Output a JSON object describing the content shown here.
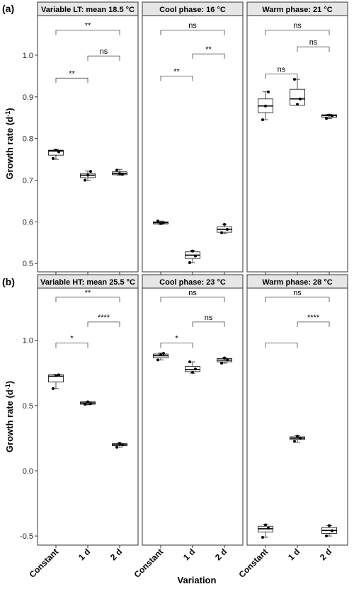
{
  "figure": {
    "xlabel": "Variation",
    "ylabel_prefix": "Growth rate (d",
    "ylabel_sup": "-1",
    "ylabel_suffix": ")"
  },
  "chart_data": [
    {
      "type": "boxplot",
      "tag": "(a)",
      "categories": [
        "Constant",
        "1 d",
        "2 d"
      ],
      "yticks": [
        0.5,
        0.6,
        0.7,
        0.8,
        0.9,
        1.0
      ],
      "ytick_labels": [
        "0.5",
        "0.6",
        "0.7",
        "0.8",
        "0.9",
        "1.0"
      ],
      "ylim": [
        0.48,
        1.095
      ],
      "panels": [
        {
          "title": "Variable LT: mean 18.5 °C",
          "boxes": [
            {
              "q1": 0.76,
              "median": 0.77,
              "q3": 0.772,
              "wmin": 0.75,
              "wmax": 0.774,
              "points": [
                0.752,
                0.772,
                0.768
              ]
            },
            {
              "q1": 0.706,
              "median": 0.712,
              "q3": 0.716,
              "wmin": 0.7,
              "wmax": 0.722,
              "points": [
                0.7,
                0.712,
                0.721
              ]
            },
            {
              "q1": 0.713,
              "median": 0.716,
              "q3": 0.72,
              "wmin": 0.712,
              "wmax": 0.726,
              "points": [
                0.724,
                0.716,
                0.714
              ]
            }
          ],
          "comparisons": [
            {
              "from": 0,
              "to": 2,
              "y": 1.06,
              "label": "**"
            },
            {
              "from": 1,
              "to": 2,
              "y": 0.998,
              "label": "ns"
            },
            {
              "from": 0,
              "to": 1,
              "y": 0.945,
              "label": "**"
            }
          ]
        },
        {
          "title": "Cool phase: 16 °C",
          "boxes": [
            {
              "q1": 0.595,
              "median": 0.598,
              "q3": 0.6,
              "wmin": 0.594,
              "wmax": 0.602,
              "points": [
                0.602,
                0.596,
                0.598
              ]
            },
            {
              "q1": 0.512,
              "median": 0.52,
              "q3": 0.528,
              "wmin": 0.502,
              "wmax": 0.532,
              "points": [
                0.502,
                0.53,
                0.518
              ]
            },
            {
              "q1": 0.575,
              "median": 0.582,
              "q3": 0.588,
              "wmin": 0.572,
              "wmax": 0.594,
              "points": [
                0.574,
                0.594,
                0.582
              ]
            }
          ],
          "comparisons": [
            {
              "from": 0,
              "to": 2,
              "y": 1.06,
              "label": "ns"
            },
            {
              "from": 1,
              "to": 2,
              "y": 1.003,
              "label": "**"
            },
            {
              "from": 0,
              "to": 1,
              "y": 0.95,
              "label": "**"
            }
          ]
        },
        {
          "title": "Warm phase: 21 °C",
          "boxes": [
            {
              "q1": 0.862,
              "median": 0.878,
              "q3": 0.895,
              "wmin": 0.845,
              "wmax": 0.912,
              "points": [
                0.845,
                0.878,
                0.912
              ]
            },
            {
              "q1": 0.88,
              "median": 0.895,
              "q3": 0.918,
              "wmin": 0.88,
              "wmax": 0.942,
              "points": [
                0.942,
                0.882,
                0.895
              ]
            },
            {
              "q1": 0.851,
              "median": 0.855,
              "q3": 0.857,
              "wmin": 0.848,
              "wmax": 0.858,
              "points": [
                0.848,
                0.856,
                0.854
              ]
            }
          ],
          "comparisons": [
            {
              "from": 0,
              "to": 2,
              "y": 1.06,
              "label": "ns"
            },
            {
              "from": 1,
              "to": 2,
              "y": 1.02,
              "label": "ns"
            },
            {
              "from": 0,
              "to": 1,
              "y": 0.955,
              "label": "ns"
            }
          ]
        }
      ]
    },
    {
      "type": "boxplot",
      "tag": "(b)",
      "categories": [
        "Constant",
        "1 d",
        "2 d"
      ],
      "yticks": [
        -0.5,
        0.0,
        0.5,
        1.0
      ],
      "ytick_labels": [
        "-0.5",
        "0.0",
        "0.5",
        "1.0"
      ],
      "ylim": [
        -0.57,
        1.4
      ],
      "panels": [
        {
          "title": "Variable HT: mean 25.5 °C",
          "boxes": [
            {
              "q1": 0.68,
              "median": 0.725,
              "q3": 0.735,
              "wmin": 0.63,
              "wmax": 0.738,
              "points": [
                0.63,
                0.73,
                0.735
              ]
            },
            {
              "q1": 0.51,
              "median": 0.52,
              "q3": 0.528,
              "wmin": 0.505,
              "wmax": 0.53,
              "points": [
                0.51,
                0.528,
                0.515
              ]
            },
            {
              "q1": 0.192,
              "median": 0.2,
              "q3": 0.208,
              "wmin": 0.18,
              "wmax": 0.212,
              "points": [
                0.18,
                0.21,
                0.198
              ]
            }
          ],
          "comparisons": [
            {
              "from": 0,
              "to": 2,
              "y": 1.33,
              "label": "**"
            },
            {
              "from": 1,
              "to": 2,
              "y": 1.14,
              "label": "****"
            },
            {
              "from": 0,
              "to": 1,
              "y": 0.98,
              "label": "*"
            }
          ]
        },
        {
          "title": "Cool phase: 23 °C",
          "boxes": [
            {
              "q1": 0.865,
              "median": 0.882,
              "q3": 0.895,
              "wmin": 0.85,
              "wmax": 0.902,
              "points": [
                0.85,
                0.89,
                0.9
              ]
            },
            {
              "q1": 0.76,
              "median": 0.775,
              "q3": 0.8,
              "wmin": 0.748,
              "wmax": 0.835,
              "points": [
                0.835,
                0.755,
                0.78
              ]
            },
            {
              "q1": 0.835,
              "median": 0.848,
              "q3": 0.86,
              "wmin": 0.825,
              "wmax": 0.868,
              "points": [
                0.825,
                0.865,
                0.85
              ]
            }
          ],
          "comparisons": [
            {
              "from": 0,
              "to": 2,
              "y": 1.33,
              "label": "ns"
            },
            {
              "from": 1,
              "to": 2,
              "y": 1.14,
              "label": "ns"
            },
            {
              "from": 0,
              "to": 1,
              "y": 0.98,
              "label": "*"
            }
          ]
        },
        {
          "title": "Warm phase: 28 °C",
          "boxes": [
            {
              "q1": -0.47,
              "median": -0.445,
              "q3": -0.425,
              "wmin": -0.51,
              "wmax": -0.41,
              "points": [
                -0.51,
                -0.415,
                -0.44
              ]
            },
            {
              "q1": 0.24,
              "median": 0.25,
              "q3": 0.26,
              "wmin": 0.22,
              "wmax": 0.268,
              "points": [
                0.225,
                0.265,
                0.25
              ]
            },
            {
              "q1": -0.48,
              "median": -0.458,
              "q3": -0.435,
              "wmin": -0.5,
              "wmax": -0.42,
              "points": [
                -0.5,
                -0.42,
                -0.46
              ]
            }
          ],
          "comparisons": [
            {
              "from": 0,
              "to": 2,
              "y": 1.33,
              "label": "ns"
            },
            {
              "from": 1,
              "to": 2,
              "y": 1.14,
              "label": "****"
            },
            {
              "from": 0,
              "to": 1,
              "y": 0.98,
              "label": ""
            }
          ]
        }
      ]
    }
  ]
}
